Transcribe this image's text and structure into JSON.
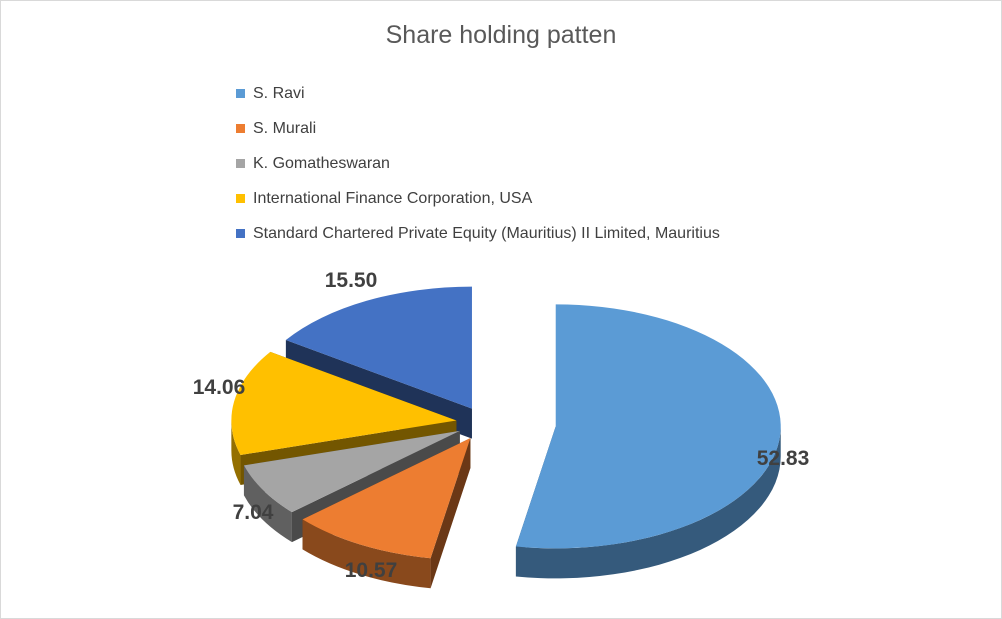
{
  "chart_data": {
    "type": "pie",
    "title": "Share holding patten",
    "legend_position": "top-left",
    "slices": [
      {
        "label": "S. Ravi",
        "value": 52.83,
        "color": "#5b9bd5"
      },
      {
        "label": "S. Murali",
        "value": 10.57,
        "color": "#ed7d31"
      },
      {
        "label": "K. Gomatheswaran",
        "value": 7.04,
        "color": "#a5a5a5"
      },
      {
        "label": "International Finance Corporation, USA",
        "value": 14.06,
        "color": "#ffc000"
      },
      {
        "label": "Standard Chartered Private Equity (Mauritius) II Limited, Mauritius",
        "value": 15.5,
        "color": "#4472c4"
      }
    ]
  }
}
